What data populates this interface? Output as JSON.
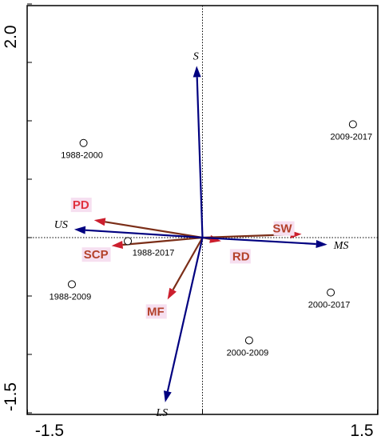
{
  "chart_data": {
    "type": "scatter",
    "subtype": "ordination-biplot",
    "xlim": [
      -1.5,
      1.5
    ],
    "ylim": [
      -1.5,
      2.0
    ],
    "x_tick_labels": [
      "-1.5",
      "1.5"
    ],
    "y_tick_labels": [
      "2.0",
      "-1.5"
    ],
    "grid": false,
    "reference_lines": "dotted lines through origin",
    "samples": [
      {
        "label": "1988-2000",
        "x": -1.02,
        "y": 0.81
      },
      {
        "label": "2009-2017",
        "x": 1.29,
        "y": 0.97
      },
      {
        "label": "1988-2017",
        "x": -0.64,
        "y": -0.03
      },
      {
        "label": "1988-2009",
        "x": -1.12,
        "y": -0.4
      },
      {
        "label": "2000-2017",
        "x": 1.1,
        "y": -0.47
      },
      {
        "label": "2000-2009",
        "x": 0.4,
        "y": -0.88
      }
    ],
    "species_vectors": [
      {
        "label": "S",
        "x": -0.05,
        "y": 1.47
      },
      {
        "label": "US",
        "x": -1.1,
        "y": 0.07
      },
      {
        "label": "MS",
        "x": 1.07,
        "y": -0.06
      },
      {
        "label": "LS",
        "x": -0.32,
        "y": -1.41
      }
    ],
    "environment_vectors": [
      {
        "label": "PD",
        "x": -0.93,
        "y": 0.15
      },
      {
        "label": "SCP",
        "x": -0.78,
        "y": -0.07
      },
      {
        "label": "MF",
        "x": -0.3,
        "y": -0.53
      },
      {
        "label": "RD",
        "x": 0.16,
        "y": -0.03
      },
      {
        "label": "SW",
        "x": 0.85,
        "y": 0.03
      }
    ],
    "colors": {
      "species_arrow": "#000080",
      "environment_arrow": "#7b2e18",
      "environment_head": "#cc1f2e",
      "environment_label": "#b3412a",
      "environment_label_alt": "#e0313f"
    }
  }
}
